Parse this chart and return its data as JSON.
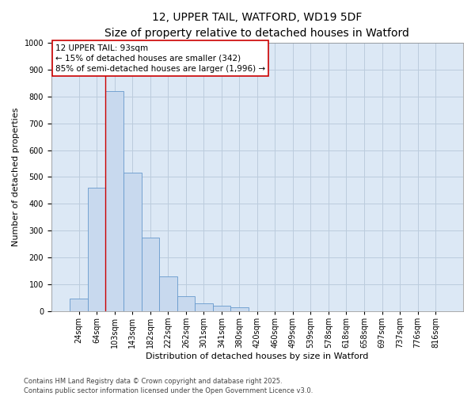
{
  "title": "12, UPPER TAIL, WATFORD, WD19 5DF",
  "subtitle": "Size of property relative to detached houses in Watford",
  "xlabel": "Distribution of detached houses by size in Watford",
  "ylabel": "Number of detached properties",
  "bar_labels": [
    "24sqm",
    "64sqm",
    "103sqm",
    "143sqm",
    "182sqm",
    "222sqm",
    "262sqm",
    "301sqm",
    "341sqm",
    "380sqm",
    "420sqm",
    "460sqm",
    "499sqm",
    "539sqm",
    "578sqm",
    "618sqm",
    "658sqm",
    "697sqm",
    "737sqm",
    "776sqm",
    "816sqm"
  ],
  "bar_values": [
    47,
    460,
    820,
    515,
    275,
    130,
    55,
    30,
    20,
    15,
    0,
    0,
    0,
    0,
    0,
    0,
    0,
    0,
    0,
    0,
    0
  ],
  "bar_color": "#c8d9ee",
  "bar_edge_color": "#6699cc",
  "grid_color": "#bbccdd",
  "background_color": "#dce8f5",
  "vline_color": "#cc0000",
  "vline_x": 1.5,
  "annotation_text": "12 UPPER TAIL: 93sqm\n← 15% of detached houses are smaller (342)\n85% of semi-detached houses are larger (1,996) →",
  "annotation_box_color": "#cc0000",
  "ylim": [
    0,
    1000
  ],
  "yticks": [
    0,
    100,
    200,
    300,
    400,
    500,
    600,
    700,
    800,
    900,
    1000
  ],
  "footer_text": "Contains HM Land Registry data © Crown copyright and database right 2025.\nContains public sector information licensed under the Open Government Licence v3.0.",
  "title_fontsize": 10,
  "subtitle_fontsize": 9,
  "xlabel_fontsize": 8,
  "ylabel_fontsize": 8,
  "tick_fontsize": 7,
  "annotation_fontsize": 7.5,
  "footer_fontsize": 6
}
